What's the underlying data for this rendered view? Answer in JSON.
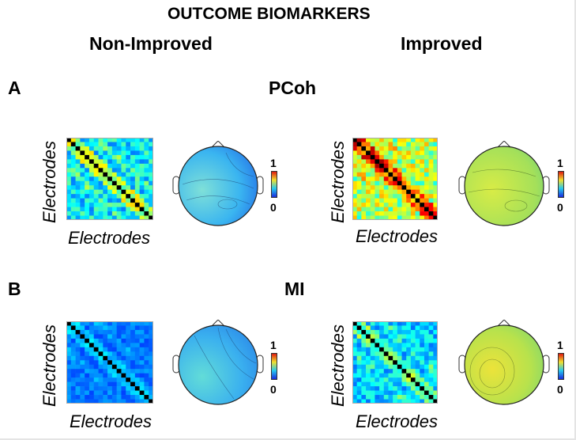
{
  "figure": {
    "title": "OUTCOME BIOMARKERS",
    "columns": [
      "Non-Improved",
      "Improved"
    ],
    "panels": [
      {
        "letter": "A",
        "metric": "PCoh"
      },
      {
        "letter": "B",
        "metric": "MI"
      }
    ],
    "axis_label": "Electrodes",
    "colorbar": {
      "max_label": "1",
      "min_label": "0"
    },
    "colors": {
      "jet_low": "#1a2bdc",
      "jet_mid": "#5ee07a",
      "jet_high": "#e01a10",
      "diagonal": "#000000"
    }
  }
}
